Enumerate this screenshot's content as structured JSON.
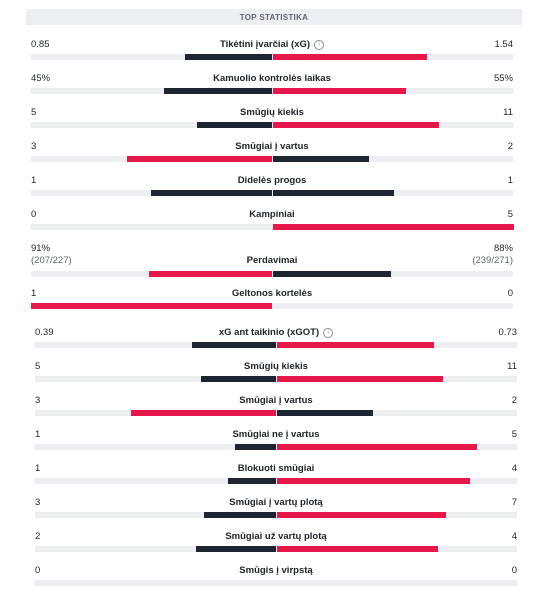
{
  "header": {
    "title": "TOP STATISTIKA"
  },
  "colors": {
    "home": "#1c2530",
    "away": "#e8174a",
    "track": "#eceef1"
  },
  "stats": [
    {
      "label": "Tikėtini įvarčiai (xG)",
      "home": "0.85",
      "away": "1.54",
      "home_share": 0.36,
      "away_share": 0.64,
      "lead": "away",
      "info": true
    },
    {
      "label": "Kamuolio kontrolės laikas",
      "home": "45%",
      "away": "55%",
      "home_share": 0.45,
      "away_share": 0.55,
      "lead": "away",
      "info": false
    },
    {
      "label": "Smūgių kiekis",
      "home": "5",
      "away": "11",
      "home_share": 0.31,
      "away_share": 0.69,
      "lead": "away",
      "info": false
    },
    {
      "label": "Smūgiai į vartus",
      "home": "3",
      "away": "2",
      "home_share": 0.6,
      "away_share": 0.4,
      "lead": "home",
      "info": false
    },
    {
      "label": "Didelės progos",
      "home": "1",
      "away": "1",
      "home_share": 0.5,
      "away_share": 0.5,
      "lead": "none",
      "info": false
    },
    {
      "label": "Kampiniai",
      "home": "0",
      "away": "5",
      "home_share": 0.0,
      "away_share": 1.0,
      "lead": "away",
      "info": false
    },
    {
      "label": "Perdavimai",
      "home": "91%",
      "away": "88%",
      "home_sub": "(207/227)",
      "away_sub": "(239/271)",
      "home_share": 0.51,
      "away_share": 0.49,
      "lead": "home",
      "info": false
    },
    {
      "label": "Geltonos kortelės",
      "home": "1",
      "away": "0",
      "home_share": 1.0,
      "away_share": 0.0,
      "lead": "home",
      "info": false
    },
    {
      "label": "xG ant taikinio (xGOT)",
      "home": "0.39",
      "away": "0.73",
      "home_share": 0.35,
      "away_share": 0.65,
      "lead": "away",
      "info": true
    },
    {
      "label": "Smūgių kiekis",
      "home": "5",
      "away": "11",
      "home_share": 0.31,
      "away_share": 0.69,
      "lead": "away",
      "info": false
    },
    {
      "label": "Smūgiai į vartus",
      "home": "3",
      "away": "2",
      "home_share": 0.6,
      "away_share": 0.4,
      "lead": "home",
      "info": false
    },
    {
      "label": "Smūgiai ne į vartus",
      "home": "1",
      "away": "5",
      "home_share": 0.17,
      "away_share": 0.83,
      "lead": "away",
      "info": false
    },
    {
      "label": "Blokuoti smūgiai",
      "home": "1",
      "away": "4",
      "home_share": 0.2,
      "away_share": 0.8,
      "lead": "away",
      "info": false
    },
    {
      "label": "Smūgiai į vartų plotą",
      "home": "3",
      "away": "7",
      "home_share": 0.3,
      "away_share": 0.7,
      "lead": "away",
      "info": false
    },
    {
      "label": "Smūgiai už vartų plotą",
      "home": "2",
      "away": "4",
      "home_share": 0.33,
      "away_share": 0.67,
      "lead": "away",
      "info": false
    },
    {
      "label": "Smūgis į virpstą",
      "home": "0",
      "away": "0",
      "home_share": 0.0,
      "away_share": 0.0,
      "lead": "none",
      "info": false
    }
  ]
}
